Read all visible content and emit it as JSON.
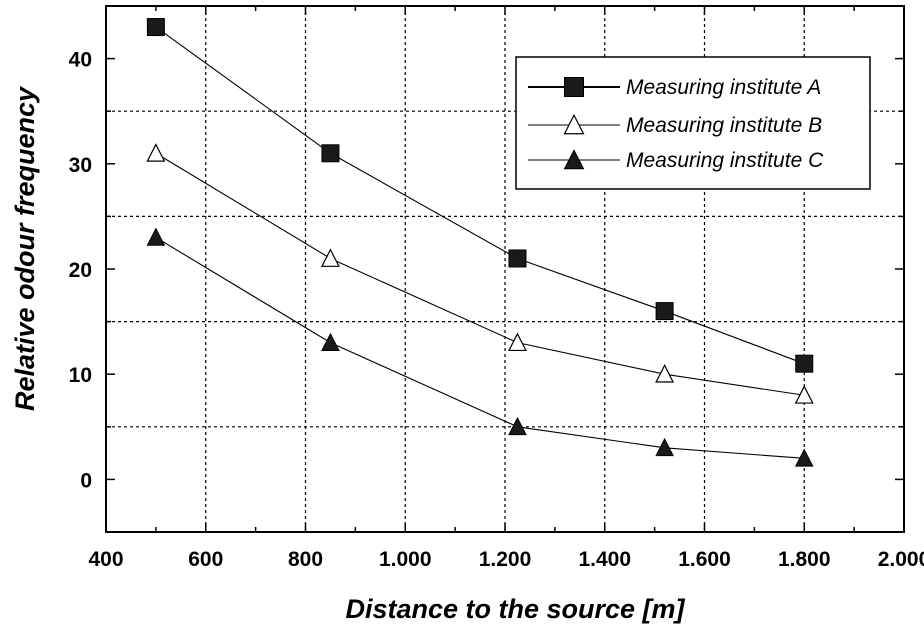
{
  "chart_data": {
    "type": "line",
    "title": "",
    "xlabel": "Distance to the source [m]",
    "ylabel": "Relative odour frequency",
    "xlim": [
      400,
      2000
    ],
    "ylim": [
      -5,
      45
    ],
    "x_ticks": [
      400,
      600,
      800,
      1000,
      1200,
      1400,
      1600,
      1800,
      2000
    ],
    "x_tick_labels": [
      "400",
      "600",
      "800",
      "1.000",
      "1.200",
      "1.400",
      "1.600",
      "1.800",
      "2.000"
    ],
    "y_ticks": [
      0,
      10,
      20,
      30,
      40
    ],
    "y_tick_labels": [
      "0",
      "10",
      "20",
      "30",
      "40"
    ],
    "grid": true,
    "legend_position": "top-right",
    "x": [
      500,
      850,
      1225,
      1520,
      1800
    ],
    "series": [
      {
        "name": "Measuring institute A",
        "marker": "filled-square",
        "values": [
          43,
          31,
          21,
          16,
          11
        ]
      },
      {
        "name": "Measuring institute B",
        "marker": "open-triangle",
        "values": [
          31,
          21,
          13,
          10,
          8
        ]
      },
      {
        "name": "Measuring institute C",
        "marker": "filled-triangle",
        "values": [
          23,
          13,
          5,
          3,
          2
        ]
      }
    ]
  }
}
